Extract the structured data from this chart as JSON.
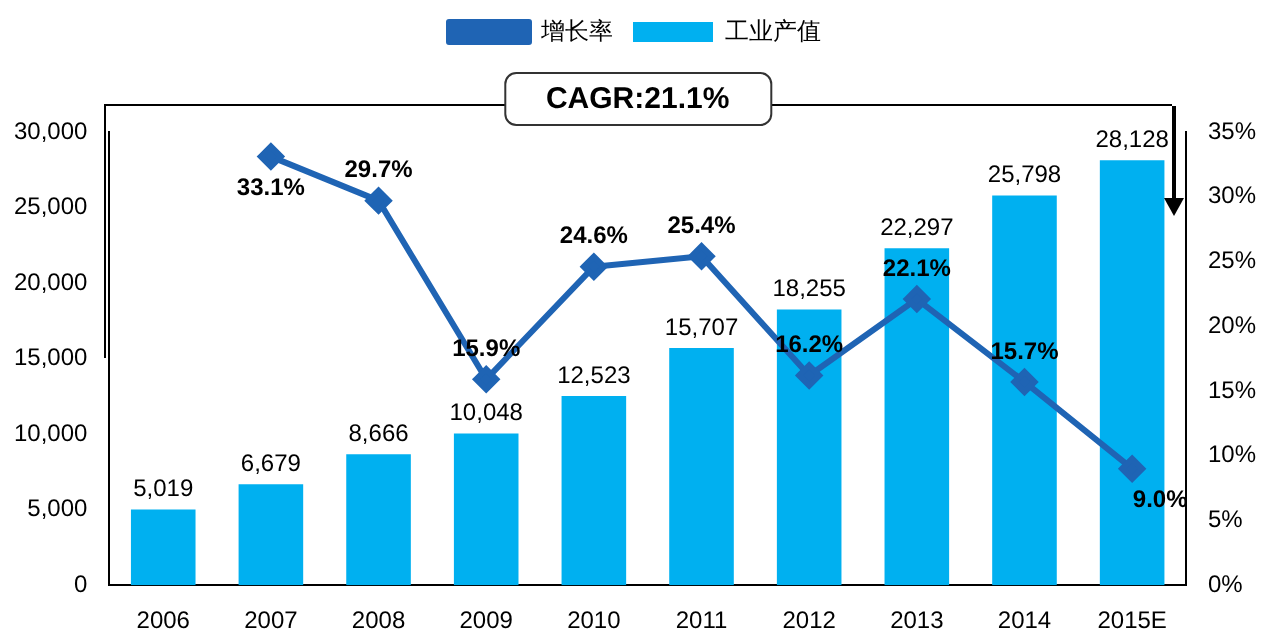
{
  "chart_data": {
    "type": "bar",
    "categories": [
      "2006",
      "2007",
      "2008",
      "2009",
      "2010",
      "2011",
      "2012",
      "2013",
      "2014",
      "2015E"
    ],
    "series": [
      {
        "name": "工业产值",
        "color": "#00b0f0",
        "values": [
          5019,
          6679,
          8666,
          10048,
          12523,
          15707,
          18255,
          22297,
          25798,
          28128
        ],
        "value_labels": [
          "5,019",
          "6,679",
          "8,666",
          "10,048",
          "12,523",
          "15,707",
          "18,255",
          "22,297",
          "25,798",
          "28,128"
        ]
      },
      {
        "name": "增长率",
        "type": "line",
        "axis": "y2",
        "color": "#1f64b4",
        "marker": "diamond",
        "values": [
          null,
          33.1,
          29.7,
          15.9,
          24.6,
          25.4,
          16.2,
          22.1,
          15.7,
          9.0
        ],
        "value_labels": [
          null,
          "33.1%",
          "29.7%",
          "15.9%",
          "24.6%",
          "25.4%",
          "16.2%",
          "22.1%",
          "15.7%",
          "9.0%"
        ]
      }
    ],
    "ylim": [
      0,
      30000
    ],
    "yticks": [
      {
        "value": 0,
        "label": "0"
      },
      {
        "value": 5000,
        "label": "5,000"
      },
      {
        "value": 10000,
        "label": "10,000"
      },
      {
        "value": 15000,
        "label": "15,000"
      },
      {
        "value": 20000,
        "label": "20,000"
      },
      {
        "value": 25000,
        "label": "25,000"
      },
      {
        "value": 30000,
        "label": "30,000"
      }
    ],
    "y2lim": [
      0,
      35
    ],
    "y2ticks": [
      {
        "value": 0,
        "label": "0%"
      },
      {
        "value": 5,
        "label": "5%"
      },
      {
        "value": 10,
        "label": "10%"
      },
      {
        "value": 15,
        "label": "15%"
      },
      {
        "value": 20,
        "label": "20%"
      },
      {
        "value": 25,
        "label": "25%"
      },
      {
        "value": 30,
        "label": "30%"
      },
      {
        "value": 35,
        "label": "35%"
      }
    ],
    "annotations": [
      "CAGR:21.1%"
    ],
    "grid": false,
    "legend": "top"
  }
}
